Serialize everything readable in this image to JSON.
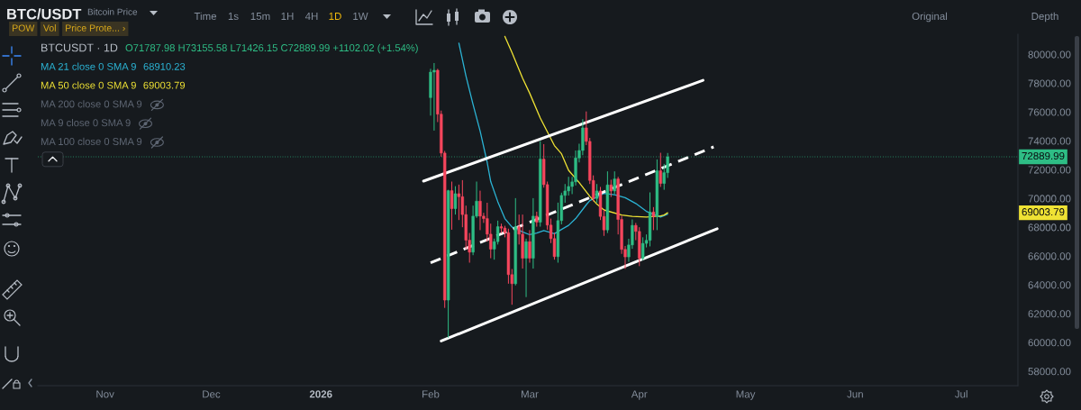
{
  "chart_data": {
    "type": "candlestick",
    "title": "BTC/USDT",
    "subtitle": "Bitcoin Price",
    "x": [
      "2026-02-01",
      "2026-02-02",
      "2026-02-03",
      "2026-02-04",
      "2026-02-05",
      "2026-02-06",
      "2026-02-07",
      "2026-02-08",
      "2026-02-09",
      "2026-02-10",
      "2026-02-11",
      "2026-02-12",
      "2026-02-13",
      "2026-02-14",
      "2026-02-15",
      "2026-02-16",
      "2026-02-17",
      "2026-02-18",
      "2026-02-19",
      "2026-02-20",
      "2026-02-21",
      "2026-02-22",
      "2026-02-23",
      "2026-02-24",
      "2026-02-25",
      "2026-02-26",
      "2026-02-27",
      "2026-02-28",
      "2026-03-01",
      "2026-03-02",
      "2026-03-03",
      "2026-03-04",
      "2026-03-05",
      "2026-03-06",
      "2026-03-07",
      "2026-03-08",
      "2026-03-09",
      "2026-03-10",
      "2026-03-11",
      "2026-03-12",
      "2026-03-13",
      "2026-03-14",
      "2026-03-15",
      "2026-03-16",
      "2026-03-17",
      "2026-03-18",
      "2026-03-19",
      "2026-03-20",
      "2026-03-21",
      "2026-03-22",
      "2026-03-23",
      "2026-03-24",
      "2026-03-25",
      "2026-03-26",
      "2026-03-27",
      "2026-03-28",
      "2026-03-29",
      "2026-03-30",
      "2026-03-31",
      "2026-04-01",
      "2026-04-02",
      "2026-04-03",
      "2026-04-04",
      "2026-04-05",
      "2026-04-06",
      "2026-04-07",
      "2026-04-08",
      "2026-04-09"
    ],
    "ohlc": [
      [
        77000,
        79000,
        75750,
        78770
      ],
      [
        78770,
        79400,
        74710,
        78900
      ],
      [
        78900,
        79000,
        75300,
        75850
      ],
      [
        75850,
        76100,
        72900,
        73150
      ],
      [
        73150,
        73300,
        62400,
        62940
      ],
      [
        62940,
        70600,
        60330,
        70540
      ],
      [
        70540,
        71170,
        67830,
        69290
      ],
      [
        69290,
        70850,
        68880,
        70330
      ],
      [
        70330,
        70960,
        68500,
        70120
      ],
      [
        70120,
        71270,
        68000,
        68880
      ],
      [
        68880,
        69500,
        66480,
        67100
      ],
      [
        67100,
        67600,
        65540,
        66270
      ],
      [
        66270,
        69500,
        66060,
        68770
      ],
      [
        68770,
        71170,
        68650,
        69810
      ],
      [
        69810,
        70540,
        67800,
        68770
      ],
      [
        68770,
        69000,
        68300,
        68600
      ],
      [
        68600,
        69700,
        67000,
        67520
      ],
      [
        67520,
        68250,
        65850,
        66480
      ],
      [
        66480,
        67210,
        65750,
        67000
      ],
      [
        67000,
        68460,
        66800,
        68040
      ],
      [
        68040,
        68250,
        67600,
        67940
      ],
      [
        67940,
        68100,
        67300,
        67620
      ],
      [
        67620,
        67900,
        64080,
        64710
      ],
      [
        64710,
        65100,
        62620,
        64080
      ],
      [
        64080,
        70020,
        63960,
        68040
      ],
      [
        68040,
        68880,
        66800,
        67520
      ],
      [
        67520,
        68880,
        65130,
        65850
      ],
      [
        65850,
        67210,
        63150,
        67000
      ],
      [
        67000,
        67800,
        65540,
        65850
      ],
      [
        65850,
        70020,
        65130,
        68770
      ],
      [
        68770,
        69080,
        68040,
        68350
      ],
      [
        68350,
        73980,
        68040,
        72730
      ],
      [
        72730,
        73770,
        70750,
        70960
      ],
      [
        70960,
        71170,
        67830,
        68150
      ],
      [
        68150,
        68600,
        66900,
        67210
      ],
      [
        67210,
        67620,
        65750,
        65960
      ],
      [
        65960,
        69710,
        65540,
        68460
      ],
      [
        68460,
        70400,
        68200,
        70210
      ],
      [
        70210,
        71000,
        69700,
        70520
      ],
      [
        70520,
        71500,
        70200,
        70830
      ],
      [
        70830,
        71500,
        70300,
        71150
      ],
      [
        71150,
        73330,
        70900,
        72810
      ],
      [
        72810,
        73800,
        72500,
        73330
      ],
      [
        73330,
        75500,
        73000,
        74900
      ],
      [
        74900,
        76040,
        73700,
        73960
      ],
      [
        73960,
        74200,
        71000,
        71250
      ],
      [
        71250,
        71600,
        69800,
        70000
      ],
      [
        70000,
        71000,
        69700,
        70520
      ],
      [
        70520,
        70800,
        68500,
        68750
      ],
      [
        68750,
        69200,
        67400,
        67810
      ],
      [
        67810,
        71880,
        67600,
        70940
      ],
      [
        70940,
        71300,
        70100,
        70520
      ],
      [
        70520,
        71880,
        70300,
        71350
      ],
      [
        71350,
        71500,
        67500,
        68540
      ],
      [
        68540,
        68800,
        66150,
        66460
      ],
      [
        66460,
        66700,
        65110,
        65940
      ],
      [
        65940,
        67200,
        65600,
        66770
      ],
      [
        66770,
        68540,
        66500,
        68130
      ],
      [
        68130,
        68300,
        67100,
        67710
      ],
      [
        67710,
        68000,
        65300,
        65840
      ],
      [
        65840,
        67300,
        65700,
        66880
      ],
      [
        66880,
        67500,
        66600,
        67090
      ],
      [
        67090,
        70420,
        66670,
        69060
      ],
      [
        69060,
        69400,
        67800,
        68750
      ],
      [
        68750,
        72710,
        67800,
        71920
      ],
      [
        71920,
        73170,
        70800,
        71040
      ],
      [
        71040,
        72400,
        70600,
        71787.98
      ],
      [
        71787.98,
        73155.58,
        71426.15,
        72889.99
      ]
    ],
    "colors": [
      "#2ebd85",
      "#2ebd85",
      "#f6465d",
      "#f6465d",
      "#f6465d",
      "#2ebd85",
      "#f6465d",
      "#2ebd85",
      "#f6465d",
      "#f6465d",
      "#f6465d",
      "#f6465d",
      "#2ebd85",
      "#2ebd85",
      "#f6465d",
      "#f6465d",
      "#f6465d",
      "#f6465d",
      "#2ebd85",
      "#2ebd85",
      "#f6465d",
      "#f6465d",
      "#f6465d",
      "#f6465d",
      "#2ebd85",
      "#f6465d",
      "#f6465d",
      "#2ebd85",
      "#f6465d",
      "#2ebd85",
      "#f6465d",
      "#2ebd85",
      "#f6465d",
      "#f6465d",
      "#f6465d",
      "#f6465d",
      "#2ebd85",
      "#2ebd85",
      "#2ebd85",
      "#2ebd85",
      "#2ebd85",
      "#2ebd85",
      "#2ebd85",
      "#2ebd85",
      "#f6465d",
      "#f6465d",
      "#f6465d",
      "#2ebd85",
      "#f6465d",
      "#f6465d",
      "#2ebd85",
      "#f6465d",
      "#2ebd85",
      "#f6465d",
      "#f6465d",
      "#f6465d",
      "#2ebd85",
      "#2ebd85",
      "#f6465d",
      "#f6465d",
      "#2ebd85",
      "#2ebd85",
      "#2ebd85",
      "#f6465d",
      "#2ebd85",
      "#f6465d",
      "#2ebd85",
      "#2ebd85"
    ],
    "series": [
      {
        "name": "MA 21 close 0 SMA 9",
        "type": "line",
        "color": "#2bb3d4",
        "x": [
          "2026-02-09",
          "2026-02-11",
          "2026-02-13",
          "2026-02-15",
          "2026-02-17",
          "2026-02-18",
          "2026-02-20",
          "2026-02-22",
          "2026-02-24",
          "2026-02-27",
          "2026-03-01",
          "2026-03-03",
          "2026-03-05",
          "2026-03-08",
          "2026-03-10",
          "2026-03-12",
          "2026-03-14",
          "2026-03-17",
          "2026-03-18",
          "2026-03-22",
          "2026-03-25",
          "2026-03-28",
          "2026-03-31",
          "2026-04-03",
          "2026-04-07",
          "2026-04-09"
        ],
        "values": [
          80780,
          78500,
          76530,
          74680,
          72500,
          71170,
          69770,
          68600,
          68020,
          67680,
          67480,
          67600,
          67770,
          67550,
          67850,
          68130,
          68600,
          69560,
          69850,
          70350,
          70250,
          70050,
          69650,
          69100,
          68710,
          68910.23
        ]
      },
      {
        "name": "MA 50 close 0 SMA 9",
        "type": "line",
        "color": "#efe234",
        "x": [
          "2026-02-22",
          "2026-02-24",
          "2026-02-27",
          "2026-03-01",
          "2026-03-04",
          "2026-03-06",
          "2026-03-08",
          "2026-03-10",
          "2026-03-12",
          "2026-03-15",
          "2026-03-18",
          "2026-03-20",
          "2026-03-22",
          "2026-03-27",
          "2026-03-30",
          "2026-04-03",
          "2026-04-07",
          "2026-04-08",
          "2026-04-09"
        ],
        "values": [
          81250,
          80130,
          78350,
          77310,
          75580,
          74630,
          73670,
          73100,
          71950,
          71100,
          70150,
          69600,
          69200,
          68850,
          68760,
          68710,
          68780,
          68850,
          69003.79
        ]
      },
      {
        "type": "line",
        "color": "#ffffff",
        "line_style": "solid",
        "x": [
          "2026-01-30",
          "2026-04-19"
        ],
        "values": [
          71200,
          78200
        ]
      },
      {
        "type": "line",
        "color": "#ffffff",
        "line_style": "dashed",
        "x": [
          "2026-02-01",
          "2026-04-22"
        ],
        "values": [
          65530,
          73580
        ]
      },
      {
        "type": "line",
        "color": "#ffffff",
        "line_style": "solid",
        "x": [
          "2026-02-04",
          "2026-04-23"
        ],
        "values": [
          60100,
          67900
        ]
      }
    ],
    "xlim": [
      "2025-10-13",
      "2026-07-17"
    ],
    "xticks": [
      {
        "value": "2025-11-01",
        "label": "Nov"
      },
      {
        "value": "2025-12-01",
        "label": "Dec"
      },
      {
        "value": "2026-01-01",
        "label": "2026"
      },
      {
        "value": "2026-02-01",
        "label": "Feb"
      },
      {
        "value": "2026-03-01",
        "label": "Mar"
      },
      {
        "value": "2026-04-01",
        "label": "Apr"
      },
      {
        "value": "2026-05-01",
        "label": "May"
      },
      {
        "value": "2026-06-01",
        "label": "Jun"
      },
      {
        "value": "2026-07-01",
        "label": "Jul"
      }
    ],
    "ylim": [
      57000,
      81400
    ],
    "yticks": [
      {
        "value": 58000,
        "label": "58000.00"
      },
      {
        "value": 60000,
        "label": "60000.00"
      },
      {
        "value": 62000,
        "label": "62000.00"
      },
      {
        "value": 64000,
        "label": "64000.00"
      },
      {
        "value": 66000,
        "label": "66000.00"
      },
      {
        "value": 68000,
        "label": "68000.00"
      },
      {
        "value": 70000,
        "label": "70000.00"
      },
      {
        "value": 72000,
        "label": "72000.00"
      },
      {
        "value": 74000,
        "label": "74000.00"
      },
      {
        "value": 76000,
        "label": "76000.00"
      },
      {
        "value": 78000,
        "label": "78000.00"
      },
      {
        "value": 80000,
        "label": "80000.00"
      }
    ],
    "legend": "top left",
    "ref_lines": [
      {
        "axis": "y",
        "value": 72889.99,
        "label": "72889.99",
        "color": "#2ebd85",
        "line_style": "dotted"
      }
    ],
    "annotations": [
      "BTCUSDT · 1D",
      "O71787.98 H73155.58 L71426.15 C72889.99 +1102.02 (+1.54%)",
      "68910.23",
      "69003.79",
      "MA 200 close 0 SMA 9",
      "MA 9 close 0 SMA 9",
      "MA 100 close 0 SMA 9",
      "Time",
      "1s",
      "15m",
      "1H",
      "4H",
      "1D",
      "1W",
      "POW",
      "Vol",
      "Price Prote... ›",
      "Original",
      "Depth",
      "69003.79"
    ]
  }
}
